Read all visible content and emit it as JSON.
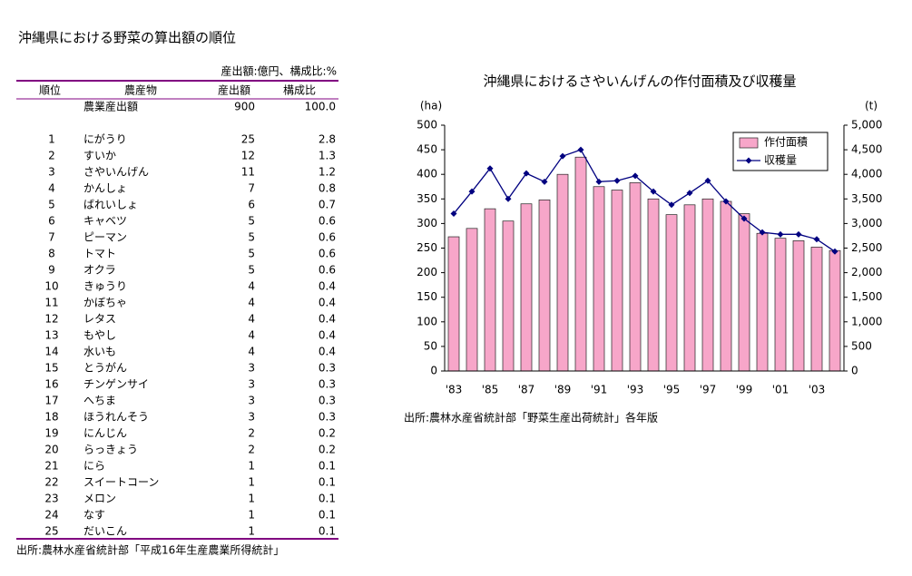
{
  "page_title": "沖縄県における野菜の算出額の順位",
  "table": {
    "note": "産出額:億円、構成比:%",
    "columns": [
      "順位",
      "農産物",
      "産出額",
      "構成比"
    ],
    "total": {
      "label": "農業産出額",
      "value": "900",
      "share": "100.0"
    },
    "rows": [
      [
        "1",
        "にがうり",
        "25",
        "2.8"
      ],
      [
        "2",
        "すいか",
        "12",
        "1.3"
      ],
      [
        "3",
        "さやいんげん",
        "11",
        "1.2"
      ],
      [
        "4",
        "かんしょ",
        "7",
        "0.8"
      ],
      [
        "5",
        "ばれいしょ",
        "6",
        "0.7"
      ],
      [
        "6",
        "キャベツ",
        "5",
        "0.6"
      ],
      [
        "7",
        "ピーマン",
        "5",
        "0.6"
      ],
      [
        "8",
        "トマト",
        "5",
        "0.6"
      ],
      [
        "9",
        "オクラ",
        "5",
        "0.6"
      ],
      [
        "10",
        "きゅうり",
        "4",
        "0.4"
      ],
      [
        "11",
        "かぼちゃ",
        "4",
        "0.4"
      ],
      [
        "12",
        "レタス",
        "4",
        "0.4"
      ],
      [
        "13",
        "もやし",
        "4",
        "0.4"
      ],
      [
        "14",
        "水いも",
        "4",
        "0.4"
      ],
      [
        "15",
        "とうがん",
        "3",
        "0.3"
      ],
      [
        "16",
        "チンゲンサイ",
        "3",
        "0.3"
      ],
      [
        "17",
        "へちま",
        "3",
        "0.3"
      ],
      [
        "18",
        "ほうれんそう",
        "3",
        "0.3"
      ],
      [
        "19",
        "にんじん",
        "2",
        "0.2"
      ],
      [
        "20",
        "らっきょう",
        "2",
        "0.2"
      ],
      [
        "21",
        "にら",
        "1",
        "0.1"
      ],
      [
        "22",
        "スイートコーン",
        "1",
        "0.1"
      ],
      [
        "23",
        "メロン",
        "1",
        "0.1"
      ],
      [
        "24",
        "なす",
        "1",
        "0.1"
      ],
      [
        "25",
        "だいこん",
        "1",
        "0.1"
      ]
    ],
    "source": "出所:農林水産省統計部「平成16年生産農業所得統計」"
  },
  "chart_data": {
    "type": "combo",
    "title": "沖縄県におけるさやいんげんの作付面積及び収穫量",
    "y_label": "(ha)",
    "y2_label": "(t)",
    "categories": [
      "'83",
      null,
      "'85",
      null,
      "'87",
      null,
      "'89",
      null,
      "'91",
      null,
      "'93",
      null,
      "'95",
      null,
      "'97",
      null,
      "'99",
      null,
      "'01",
      null,
      "'03",
      null
    ],
    "series": [
      {
        "name": "作付面積",
        "type": "bar",
        "color": "#f7a6c9",
        "values": [
          273,
          290,
          330,
          305,
          340,
          348,
          400,
          435,
          375,
          368,
          383,
          350,
          318,
          338,
          350,
          345,
          320,
          280,
          270,
          265,
          252,
          245
        ]
      },
      {
        "name": "収穫量",
        "type": "line",
        "axis": "y2",
        "color": "#000080",
        "values": [
          3200,
          3650,
          4120,
          3500,
          4020,
          3850,
          4370,
          4500,
          3850,
          3870,
          3970,
          3650,
          3380,
          3620,
          3870,
          3450,
          3100,
          2820,
          2780,
          2780,
          2680,
          2430
        ]
      }
    ],
    "ylim": [
      0,
      500
    ],
    "yticks": [
      0,
      50,
      100,
      150,
      200,
      250,
      300,
      350,
      400,
      450,
      500
    ],
    "y2lim": [
      0,
      5000
    ],
    "y2ticks": [
      0,
      500,
      {
        "value": 1000,
        "label": "1,000"
      },
      {
        "value": 1500,
        "label": "1,500"
      },
      {
        "value": 2000,
        "label": "2,000"
      },
      {
        "value": 2500,
        "label": "2,500"
      },
      {
        "value": 3000,
        "label": "3,000"
      },
      {
        "value": 3500,
        "label": "3,500"
      },
      {
        "value": 4000,
        "label": "4,000"
      },
      {
        "value": 4500,
        "label": "4,500"
      },
      {
        "value": 5000,
        "label": "5,000"
      }
    ],
    "legend": "upper right",
    "source": "出所:農林水産省統計部「野菜生産出荷統計」各年版"
  }
}
